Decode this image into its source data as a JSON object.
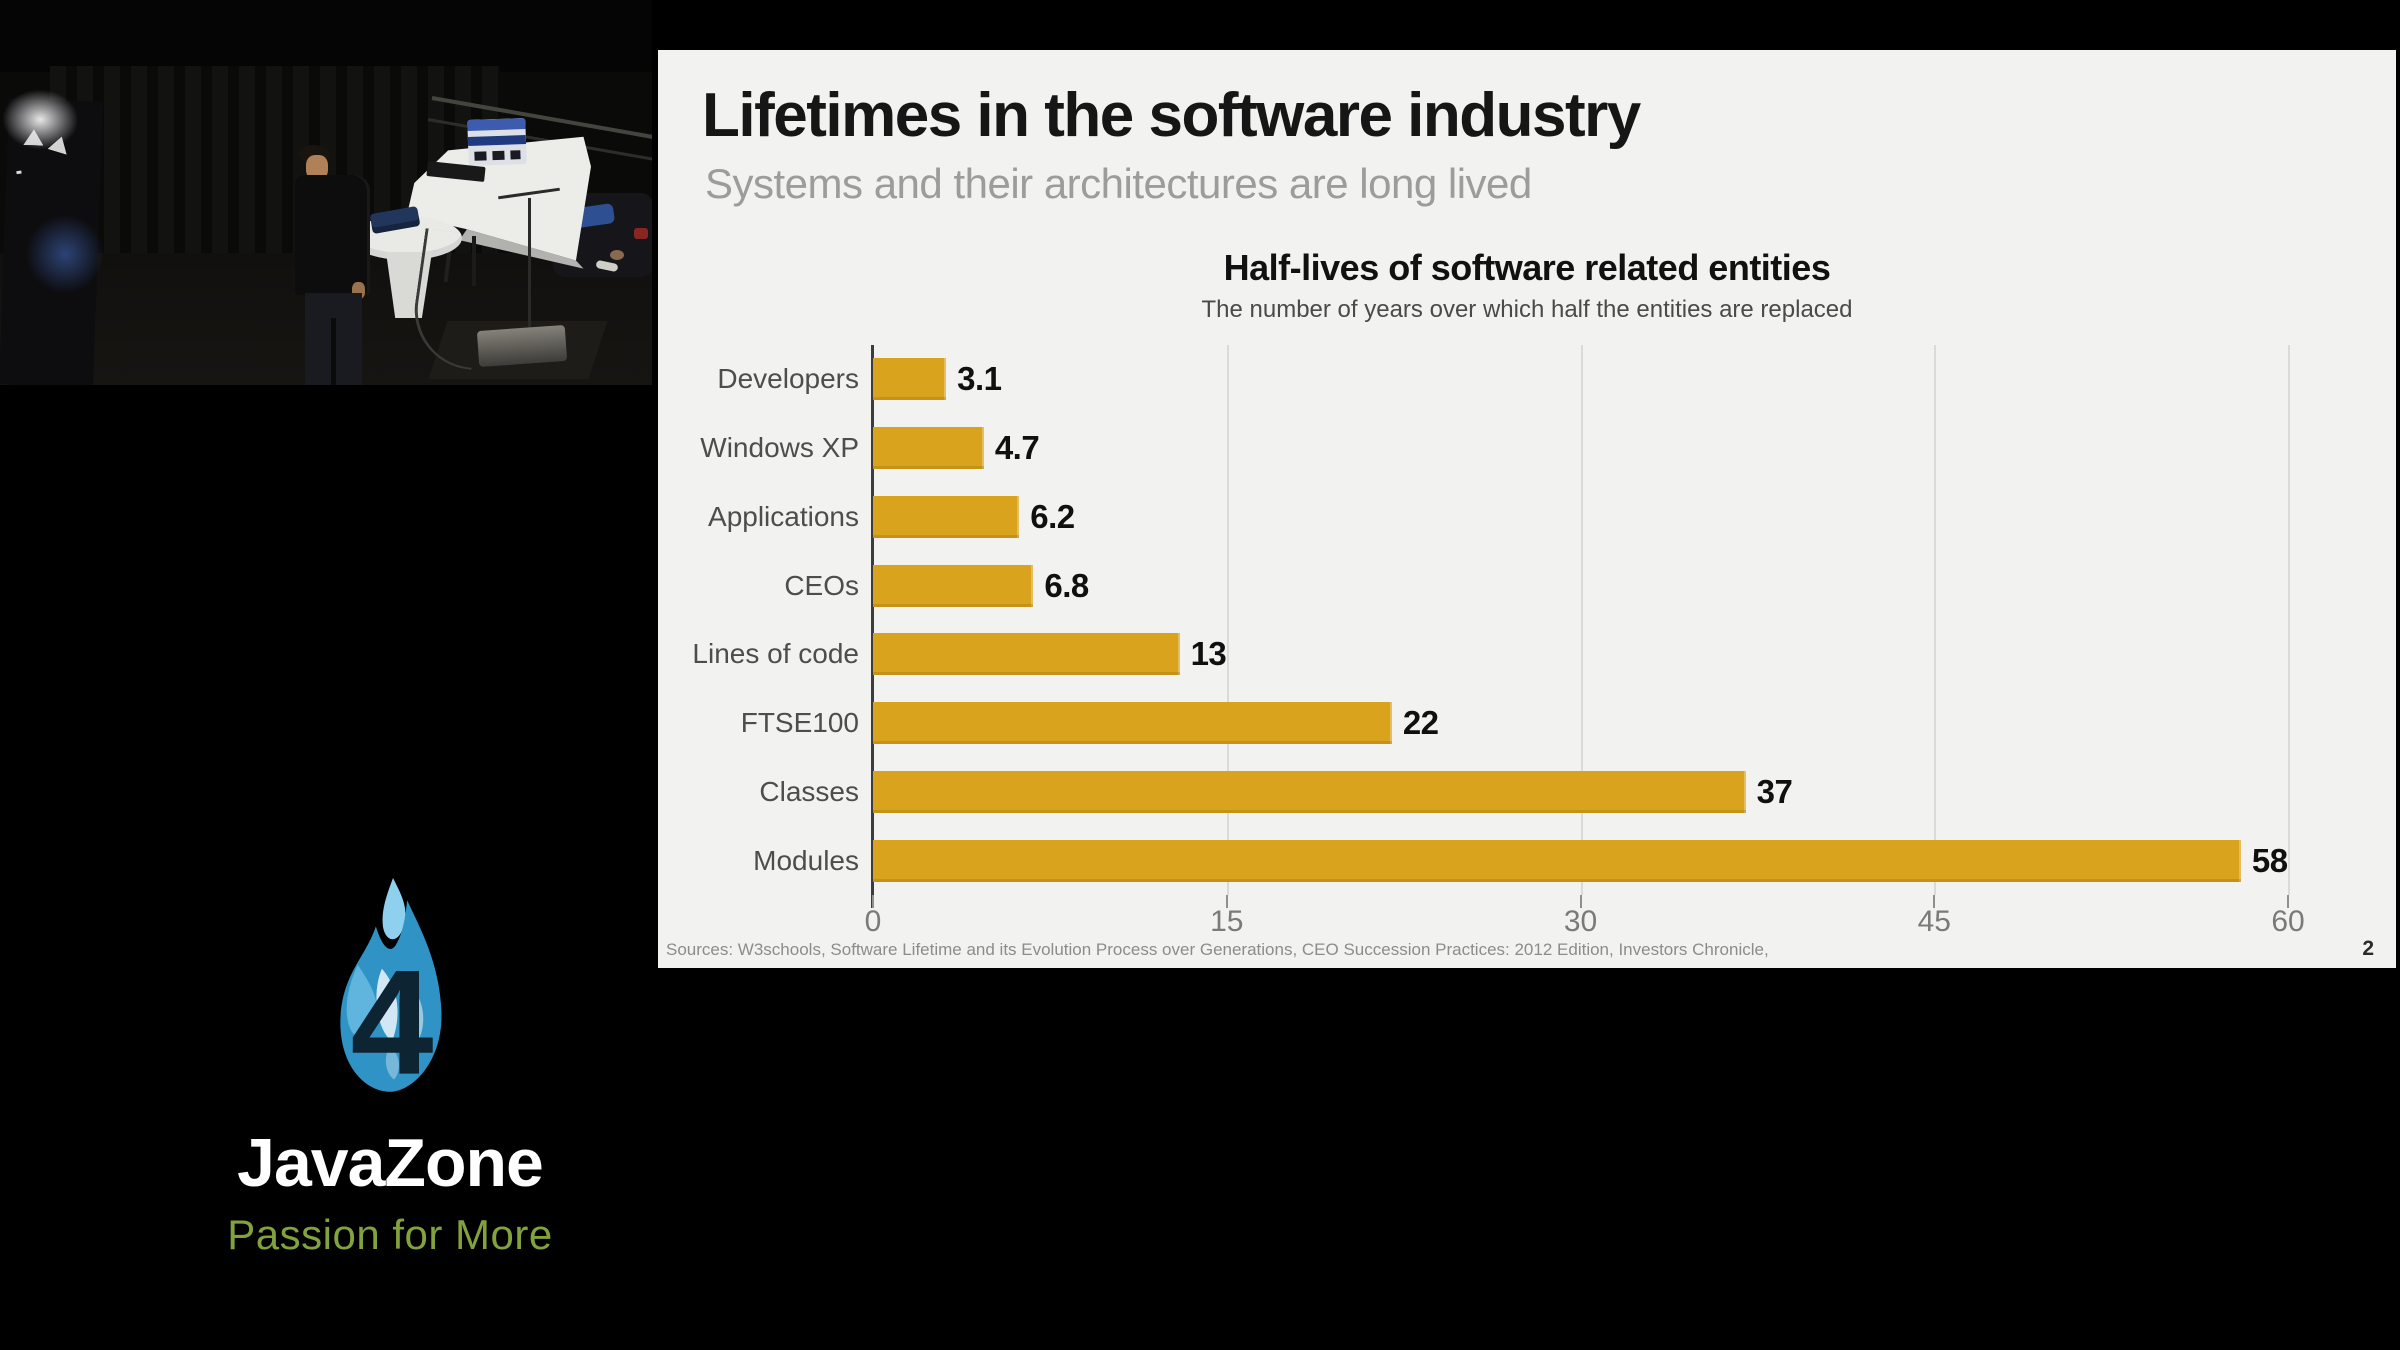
{
  "slide": {
    "title": "Lifetimes in the software industry",
    "subtitle": "Systems and their architectures are long lived",
    "sources": "Sources: W3schools, Software Lifetime and its Evolution Process over Generations, CEO Succession Practices: 2012 Edition, Investors Chronicle,",
    "page_number": "2"
  },
  "chart_data": {
    "type": "bar",
    "orientation": "horizontal",
    "title": "Half-lives of software related entities",
    "subtitle": "The number of years over which half the entities are replaced",
    "categories": [
      "Developers",
      "Windows XP",
      "Applications",
      "CEOs",
      "Lines of code",
      "FTSE100",
      "Classes",
      "Modules"
    ],
    "values": [
      3.1,
      4.7,
      6.2,
      6.8,
      13,
      22,
      37,
      58
    ],
    "value_labels": [
      "3.1",
      "4.7",
      "6.2",
      "6.8",
      "13",
      "22",
      "37",
      "58"
    ],
    "x_ticks": [
      0,
      15,
      30,
      45,
      60
    ],
    "xlim": [
      0,
      63.9
    ],
    "xlabel": "",
    "ylabel": "",
    "grid": true,
    "legend": false,
    "bar_color": "#d9a31d"
  },
  "logo": {
    "name": "JavaZone",
    "number": "4",
    "tagline": "Passion for More",
    "colors": {
      "flame_outer": "#2f93c6",
      "flame_inner": "#5fb5dd",
      "flame_wisp": "#8fd0ee",
      "number": "#0d2433",
      "name_text": "#ffffff",
      "tagline_text": "#82a23e"
    }
  },
  "theme": {
    "background": "#000000",
    "slide_background": "#f2f2f0",
    "gridline": "#dadad7",
    "axis": "#3c3c3c"
  }
}
